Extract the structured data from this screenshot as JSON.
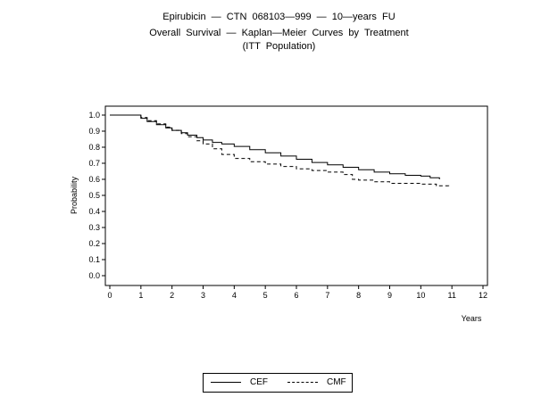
{
  "title": {
    "line1": "Epirubicin  —  CTN  068103—999  —  10—years  FU",
    "line2": "Overall  Survival  —  Kaplan—Meier  Curves  by  Treatment",
    "line3": "(ITT  Population)"
  },
  "chart_data": {
    "type": "line",
    "chart_kind": "Kaplan-Meier step curve",
    "xlabel": "Years",
    "ylabel": "Probability",
    "xlim": [
      0,
      12
    ],
    "ylim": [
      0,
      1
    ],
    "xticks": [
      "0",
      "1",
      "2",
      "3",
      "4",
      "5",
      "6",
      "7",
      "8",
      "9",
      "10",
      "11",
      "12"
    ],
    "yticks": [
      "0.0",
      "0.1",
      "0.2",
      "0.3",
      "0.4",
      "0.5",
      "0.6",
      "0.7",
      "0.8",
      "0.9",
      "1.0"
    ],
    "grid": false,
    "legend_placement": "bottom-center",
    "series": [
      {
        "name": "CEF",
        "line_style": "solid",
        "x": [
          0,
          0.8,
          1.0,
          1.2,
          1.5,
          1.8,
          2.0,
          2.3,
          2.5,
          2.8,
          3.0,
          3.3,
          3.6,
          4.0,
          4.5,
          5.0,
          5.5,
          6.0,
          6.5,
          7.0,
          7.5,
          8.0,
          8.5,
          9.0,
          9.5,
          10.0,
          10.3,
          10.6
        ],
        "y": [
          1.0,
          1.0,
          0.98,
          0.96,
          0.94,
          0.92,
          0.905,
          0.89,
          0.875,
          0.86,
          0.845,
          0.83,
          0.82,
          0.805,
          0.785,
          0.765,
          0.745,
          0.725,
          0.705,
          0.69,
          0.675,
          0.66,
          0.645,
          0.635,
          0.625,
          0.62,
          0.61,
          0.6
        ]
      },
      {
        "name": "CMF",
        "line_style": "dashed",
        "x": [
          0,
          0.8,
          1.0,
          1.2,
          1.5,
          1.8,
          2.0,
          2.3,
          2.5,
          2.8,
          3.0,
          3.3,
          3.6,
          4.0,
          4.5,
          5.0,
          5.5,
          6.0,
          6.5,
          7.0,
          7.5,
          7.8,
          8.0,
          8.5,
          9.0,
          9.5,
          10.0,
          10.5,
          10.9
        ],
        "y": [
          1.0,
          1.0,
          0.985,
          0.965,
          0.945,
          0.925,
          0.905,
          0.885,
          0.865,
          0.84,
          0.82,
          0.79,
          0.755,
          0.73,
          0.71,
          0.695,
          0.68,
          0.665,
          0.655,
          0.645,
          0.63,
          0.6,
          0.595,
          0.585,
          0.575,
          0.575,
          0.57,
          0.56,
          0.555
        ]
      }
    ]
  },
  "legend": {
    "items": [
      {
        "label": "CEF",
        "style": "solid"
      },
      {
        "label": "CMF",
        "style": "dashed"
      }
    ]
  }
}
